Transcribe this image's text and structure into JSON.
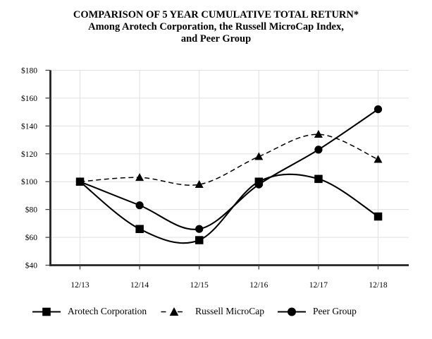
{
  "title": {
    "line1": "COMPARISON OF 5 YEAR CUMULATIVE TOTAL RETURN*",
    "line2": "Among Arotech Corporation, the Russell MicroCap Index,",
    "line3": "and Peer Group"
  },
  "chart_data": {
    "type": "line",
    "categories": [
      "12/13",
      "12/14",
      "12/15",
      "12/16",
      "12/17",
      "12/18"
    ],
    "series": [
      {
        "name": "Arotech Corporation",
        "marker": "square",
        "line_style": "solid",
        "values": [
          100,
          66,
          58,
          100,
          102,
          75
        ]
      },
      {
        "name": "Russell MicroCap",
        "marker": "triangle",
        "line_style": "dashed",
        "values": [
          100,
          103,
          98,
          118,
          134,
          116
        ]
      },
      {
        "name": "Peer Group",
        "marker": "circle",
        "line_style": "solid",
        "values": [
          100,
          83,
          66,
          98,
          123,
          152
        ]
      }
    ],
    "ylim": [
      40,
      180
    ],
    "y_tick_step": 20,
    "y_tick_prefix": "$",
    "xlabel": "",
    "ylabel": "",
    "grid": true,
    "legend_position": "bottom"
  },
  "colors": {
    "series": "#000000",
    "grid": "#e0e0e0",
    "axis": "#222222",
    "tick": "#444444",
    "text": "#000000",
    "background": "#ffffff"
  }
}
